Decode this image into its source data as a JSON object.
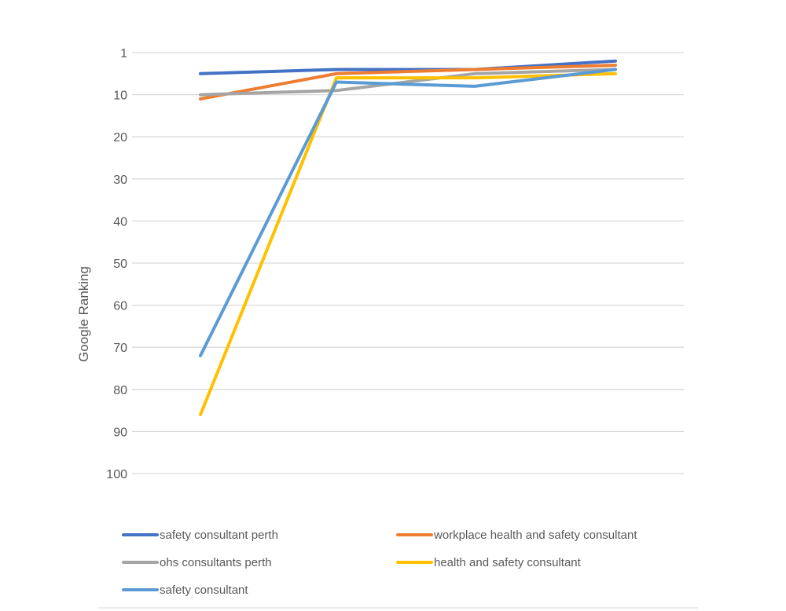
{
  "chart_data": {
    "type": "line",
    "title": "",
    "xlabel": "",
    "ylabel": "Google Ranking",
    "y_reversed": true,
    "ylim": [
      0,
      100
    ],
    "y_tick_labels": [
      "1",
      "10",
      "20",
      "30",
      "40",
      "50",
      "60",
      "70",
      "80",
      "90",
      "100"
    ],
    "y_tick_values": [
      0,
      10,
      20,
      30,
      40,
      50,
      60,
      70,
      80,
      90,
      100
    ],
    "grid": true,
    "legend_position": "bottom",
    "x": [
      1,
      2,
      3,
      4
    ],
    "series": [
      {
        "name": "safety consultant perth",
        "color": "#4472C4",
        "values": [
          5,
          4,
          4,
          2
        ]
      },
      {
        "name": "workplace health and safety consultant",
        "color": "#ED7D31",
        "values": [
          11,
          5,
          4,
          3
        ]
      },
      {
        "name": "ohs consultants perth",
        "color": "#A5A5A5",
        "values": [
          10,
          9,
          5,
          4
        ]
      },
      {
        "name": "health and safety consultant",
        "color": "#FFC000",
        "values": [
          86,
          6,
          6,
          5
        ]
      },
      {
        "name": "safety consultant",
        "color": "#5B9BD5",
        "values": [
          72,
          7,
          8,
          4
        ]
      }
    ]
  }
}
